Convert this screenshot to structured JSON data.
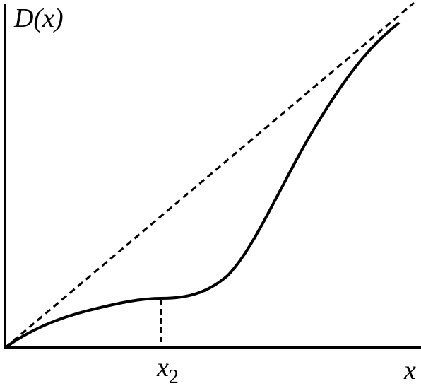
{
  "labels": {
    "y_axis": "D(x)",
    "x_axis": "x",
    "marker": {
      "base": "x",
      "subscript": "2"
    }
  }
}
